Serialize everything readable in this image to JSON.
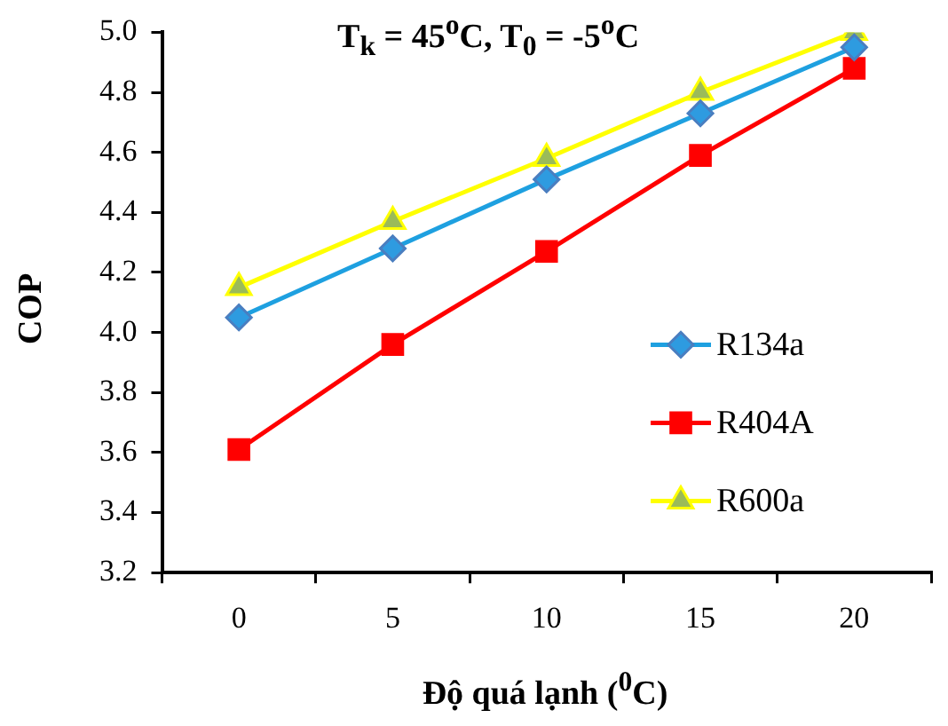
{
  "chart_data": {
    "type": "line",
    "title": "T$_{k}$ = 45$^{o}$C, T$_{0}$ =  -5$^{o}$C",
    "xlabel": "Độ quá lạnh ($^{0}$C)",
    "ylabel": "COP",
    "categories": [
      "0",
      "5",
      "10",
      "15",
      "20"
    ],
    "ylim": [
      3.2,
      5.0
    ],
    "yticks": [
      {
        "value": 3.2,
        "label": "3.2"
      },
      {
        "value": 3.4,
        "label": "3.4"
      },
      {
        "value": 3.6,
        "label": "3.6"
      },
      {
        "value": 3.8,
        "label": "3.8"
      },
      {
        "value": 4.0,
        "label": "4.0"
      },
      {
        "value": 4.2,
        "label": "4.2"
      },
      {
        "value": 4.4,
        "label": "4.4"
      },
      {
        "value": 4.6,
        "label": "4.6"
      },
      {
        "value": 4.8,
        "label": "4.8"
      },
      {
        "value": 5.0,
        "label": "5.0"
      }
    ],
    "grid": false,
    "legend": "right",
    "line_style": "solid",
    "series": [
      {
        "name": "R134a",
        "color": "#1ea0e0",
        "marker": "diamond",
        "values": [
          4.05,
          4.28,
          4.51,
          4.73,
          4.95
        ]
      },
      {
        "name": "R404A",
        "color": "#ff0000",
        "marker": "square",
        "values": [
          3.61,
          3.96,
          4.27,
          4.59,
          4.88
        ]
      },
      {
        "name": "R600a",
        "color": "#ffff00",
        "marker": "triangle",
        "values": [
          4.15,
          4.37,
          4.58,
          4.8,
          5.0
        ]
      }
    ]
  }
}
